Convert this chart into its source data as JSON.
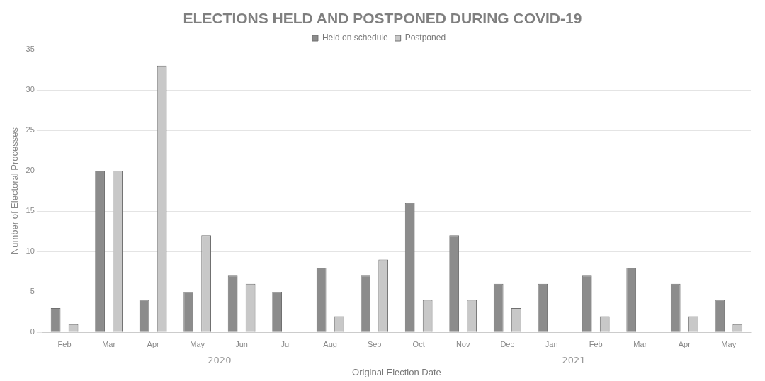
{
  "chart_data": {
    "type": "bar",
    "title": "ELECTIONS HELD AND POSTPONED DURING COVID-19",
    "xlabel": "Original Election Date",
    "ylabel": "Number of Electoral Processes",
    "categories": [
      "Feb",
      "Mar",
      "Apr",
      "May",
      "Jun",
      "Jul",
      "Aug",
      "Sep",
      "Oct",
      "Nov",
      "Dec",
      "Jan",
      "Feb",
      "Mar",
      "Apr",
      "May"
    ],
    "series": [
      {
        "name": "Held on schedule",
        "color": "#8c8c8c",
        "values": [
          3,
          20,
          4,
          5,
          7,
          5,
          8,
          7,
          16,
          12,
          6,
          6,
          7,
          8,
          6,
          4
        ]
      },
      {
        "name": "Postponed",
        "color": "#c8c8c8",
        "values": [
          1,
          20,
          33,
          12,
          6,
          0,
          2,
          9,
          4,
          4,
          3,
          0,
          2,
          0,
          2,
          1
        ]
      }
    ],
    "annotations": [
      "2020",
      "2021"
    ],
    "ylim": [
      0,
      35
    ],
    "yticks": [
      0,
      5,
      10,
      15,
      20,
      25,
      30,
      35
    ],
    "grid": "y",
    "legend": "top"
  }
}
